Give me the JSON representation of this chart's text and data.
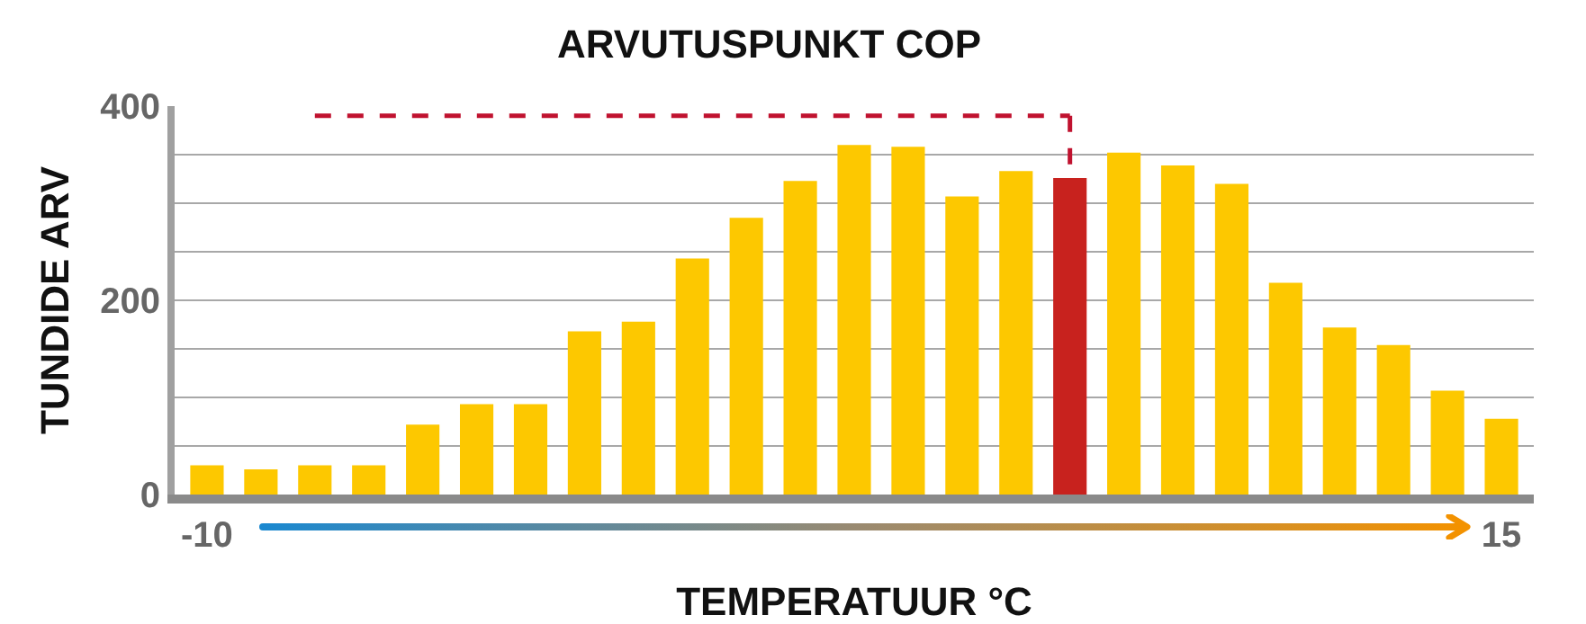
{
  "chart_data": {
    "type": "bar",
    "title": "ARVUTUSPUNKT COP",
    "xlabel": "TEMPERATUUR °C",
    "ylabel": "TUNDIDE ARV",
    "categories": [
      "-10",
      null,
      null,
      null,
      null,
      null,
      null,
      null,
      null,
      null,
      null,
      null,
      null,
      null,
      null,
      null,
      null,
      null,
      null,
      null,
      null,
      null,
      null,
      null,
      "15"
    ],
    "values": [
      30,
      26,
      30,
      30,
      72,
      93,
      93,
      168,
      178,
      243,
      285,
      323,
      360,
      358,
      307,
      333,
      326,
      352,
      339,
      320,
      218,
      172,
      154,
      107,
      78
    ],
    "colors": [
      "#fdc800",
      "#fdc800",
      "#fdc800",
      "#fdc800",
      "#fdc800",
      "#fdc800",
      "#fdc800",
      "#fdc800",
      "#fdc800",
      "#fdc800",
      "#fdc800",
      "#fdc800",
      "#fdc800",
      "#fdc800",
      "#fdc800",
      "#fdc800",
      "#c8221e",
      "#fdc800",
      "#fdc800",
      "#fdc800",
      "#fdc800",
      "#fdc800",
      "#fdc800",
      "#fdc800",
      "#fdc800"
    ],
    "ylim": [
      0,
      400
    ],
    "yticks": [
      0,
      {
        "value": 50,
        "label": null
      },
      {
        "value": 100,
        "label": null
      },
      {
        "value": 150,
        "label": null
      },
      200,
      {
        "value": 250,
        "label": null
      },
      {
        "value": 300,
        "label": null
      },
      {
        "value": 350,
        "label": null
      },
      400
    ],
    "ref_lines": [
      {
        "axis": "y",
        "value": 390,
        "color": "#c0122f",
        "line_style": "dashed"
      }
    ],
    "grid": "y"
  }
}
